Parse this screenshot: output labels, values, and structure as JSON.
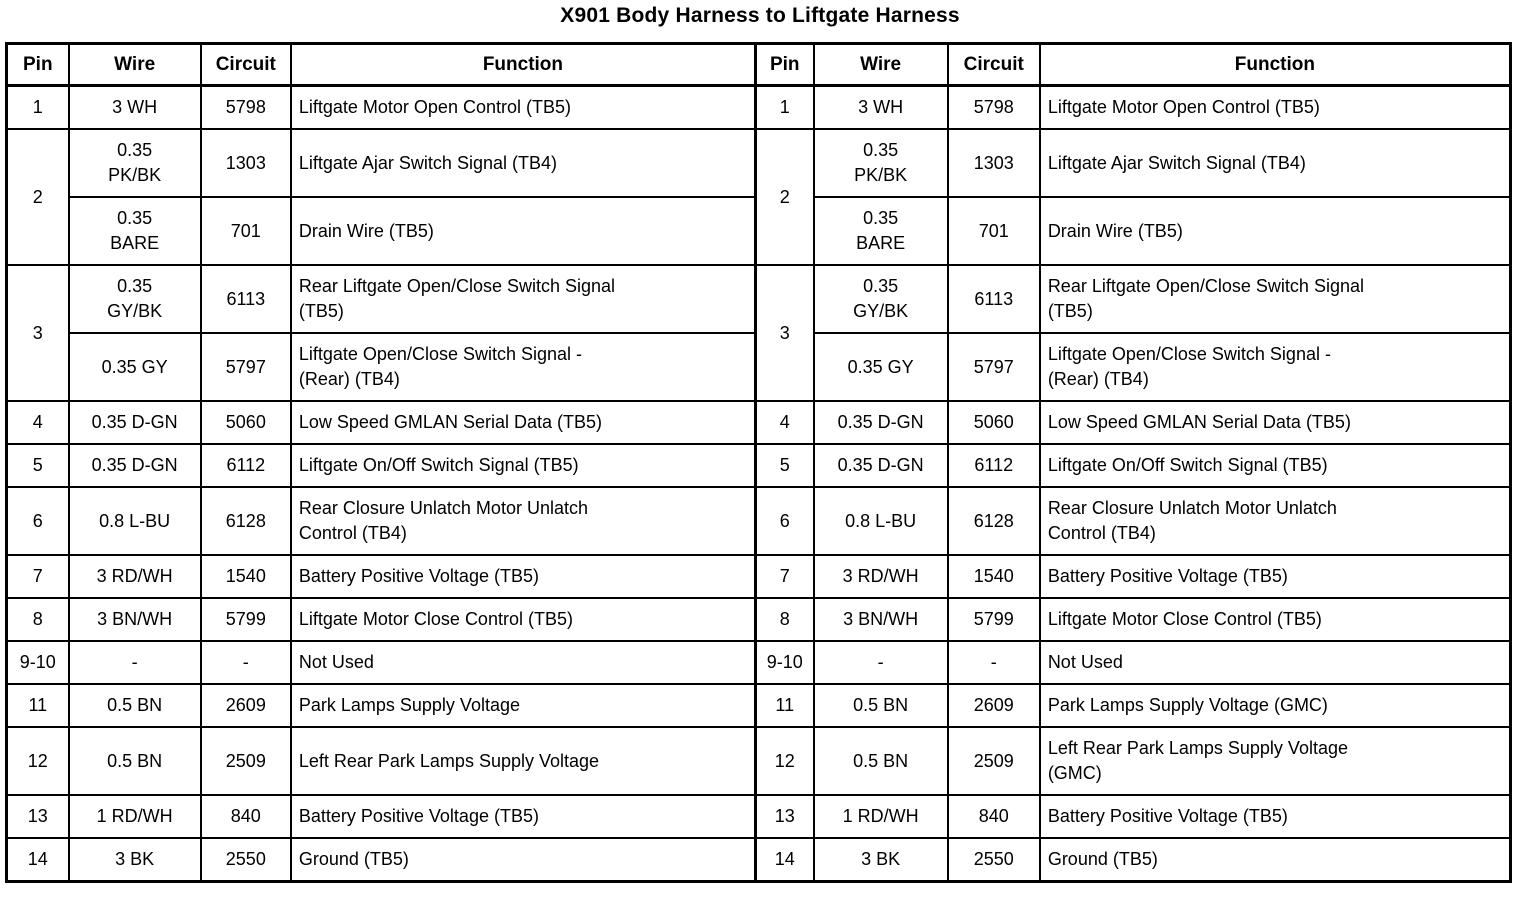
{
  "title": "X901 Body Harness to Liftgate Harness",
  "columns": [
    "Pin",
    "Wire",
    "Circuit",
    "Function"
  ],
  "rows": [
    {
      "left": {
        "pin": "1",
        "wire": "3 WH",
        "circuit": "5798",
        "function": "Liftgate Motor Open Control (TB5)"
      },
      "right": {
        "pin": "1",
        "wire": "3 WH",
        "circuit": "5798",
        "function": "Liftgate Motor Open Control (TB5)"
      }
    },
    {
      "left": {
        "pin": "2",
        "pin_rowspan": 2,
        "wire": "0.35\nPK/BK",
        "circuit": "1303",
        "function": "Liftgate Ajar Switch Signal (TB4)"
      },
      "right": {
        "pin": "2",
        "pin_rowspan": 2,
        "wire": "0.35\nPK/BK",
        "circuit": "1303",
        "function": "Liftgate Ajar Switch Signal (TB4)"
      }
    },
    {
      "left": {
        "wire": "0.35\nBARE",
        "circuit": "701",
        "function": "Drain Wire (TB5)"
      },
      "right": {
        "wire": "0.35\nBARE",
        "circuit": "701",
        "function": "Drain Wire (TB5)"
      }
    },
    {
      "left": {
        "pin": "3",
        "pin_rowspan": 2,
        "wire": "0.35\nGY/BK",
        "circuit": "6113",
        "function": "Rear Liftgate Open/Close Switch Signal\n(TB5)"
      },
      "right": {
        "pin": "3",
        "pin_rowspan": 2,
        "wire": "0.35\nGY/BK",
        "circuit": "6113",
        "function": "Rear Liftgate Open/Close Switch Signal\n(TB5)"
      }
    },
    {
      "left": {
        "wire": "0.35 GY",
        "circuit": "5797",
        "function": "Liftgate Open/Close Switch Signal -\n(Rear) (TB4)"
      },
      "right": {
        "wire": "0.35 GY",
        "circuit": "5797",
        "function": "Liftgate Open/Close Switch Signal -\n(Rear) (TB4)"
      }
    },
    {
      "left": {
        "pin": "4",
        "wire": "0.35 D-GN",
        "circuit": "5060",
        "function": "Low Speed GMLAN Serial Data (TB5)"
      },
      "right": {
        "pin": "4",
        "wire": "0.35 D-GN",
        "circuit": "5060",
        "function": "Low Speed GMLAN Serial Data (TB5)"
      }
    },
    {
      "left": {
        "pin": "5",
        "wire": "0.35 D-GN",
        "circuit": "6112",
        "function": "Liftgate On/Off Switch Signal (TB5)"
      },
      "right": {
        "pin": "5",
        "wire": "0.35 D-GN",
        "circuit": "6112",
        "function": "Liftgate On/Off Switch Signal (TB5)"
      }
    },
    {
      "left": {
        "pin": "6",
        "wire": "0.8 L-BU",
        "circuit": "6128",
        "function": "Rear Closure Unlatch Motor Unlatch\nControl (TB4)"
      },
      "right": {
        "pin": "6",
        "wire": "0.8 L-BU",
        "circuit": "6128",
        "function": "Rear Closure Unlatch Motor Unlatch\nControl (TB4)"
      }
    },
    {
      "left": {
        "pin": "7",
        "wire": "3 RD/WH",
        "circuit": "1540",
        "function": "Battery Positive Voltage (TB5)"
      },
      "right": {
        "pin": "7",
        "wire": "3 RD/WH",
        "circuit": "1540",
        "function": "Battery Positive Voltage (TB5)"
      }
    },
    {
      "left": {
        "pin": "8",
        "wire": "3 BN/WH",
        "circuit": "5799",
        "function": "Liftgate Motor Close Control (TB5)"
      },
      "right": {
        "pin": "8",
        "wire": "3 BN/WH",
        "circuit": "5799",
        "function": "Liftgate Motor Close Control (TB5)"
      }
    },
    {
      "left": {
        "pin": "9-10",
        "wire": "-",
        "circuit": "-",
        "function": "Not Used"
      },
      "right": {
        "pin": "9-10",
        "wire": "-",
        "circuit": "-",
        "function": "Not Used"
      }
    },
    {
      "left": {
        "pin": "11",
        "wire": "0.5 BN",
        "circuit": "2609",
        "function": "Park Lamps Supply Voltage"
      },
      "right": {
        "pin": "11",
        "wire": "0.5 BN",
        "circuit": "2609",
        "function": "Park Lamps Supply Voltage (GMC)"
      }
    },
    {
      "left": {
        "pin": "12",
        "wire": "0.5 BN",
        "circuit": "2509",
        "function": "Left Rear Park Lamps Supply Voltage"
      },
      "right": {
        "pin": "12",
        "wire": "0.5 BN",
        "circuit": "2509",
        "function": "Left Rear Park Lamps Supply Voltage\n(GMC)"
      }
    },
    {
      "left": {
        "pin": "13",
        "wire": "1 RD/WH",
        "circuit": "840",
        "function": "Battery Positive Voltage (TB5)"
      },
      "right": {
        "pin": "13",
        "wire": "1 RD/WH",
        "circuit": "840",
        "function": "Battery Positive Voltage (TB5)"
      }
    },
    {
      "left": {
        "pin": "14",
        "wire": "3 BK",
        "circuit": "2550",
        "function": "Ground (TB5)"
      },
      "right": {
        "pin": "14",
        "wire": "3 BK",
        "circuit": "2550",
        "function": "Ground (TB5)"
      }
    }
  ]
}
